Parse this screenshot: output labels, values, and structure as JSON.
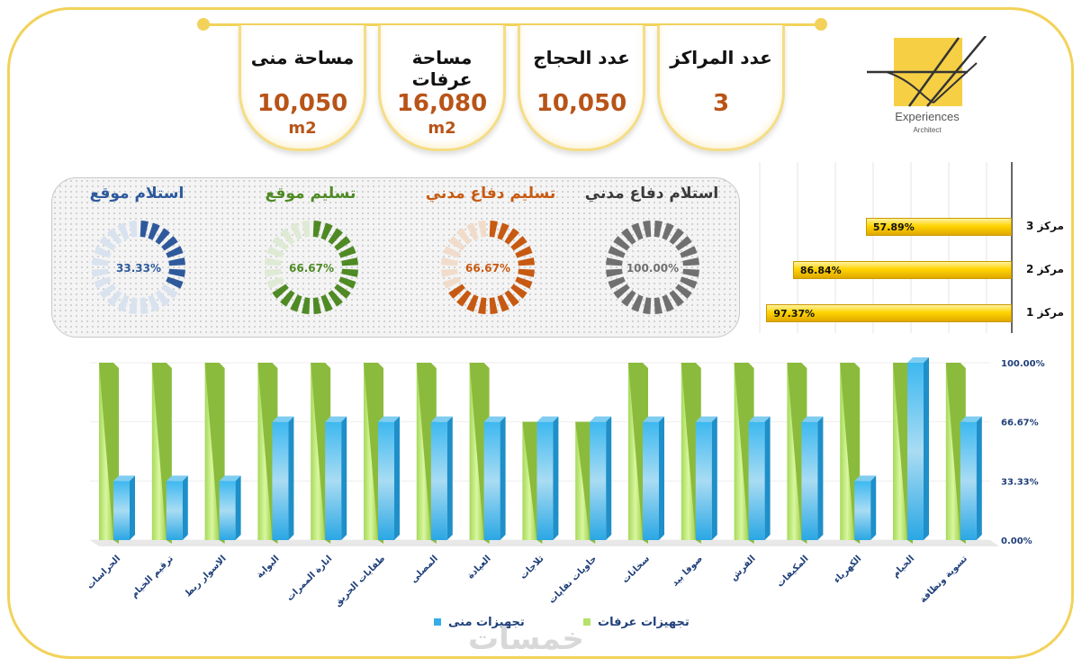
{
  "kpis": [
    {
      "title": "عدد المراكز",
      "value": "3",
      "unit": ""
    },
    {
      "title": "عدد الحجاج",
      "value": "10,050",
      "unit": ""
    },
    {
      "title": "مساحة عرفات",
      "value": "16,080",
      "unit": "m2"
    },
    {
      "title": "مساحة منى",
      "value": "10,050",
      "unit": "m2"
    }
  ],
  "logo": {
    "name": "Experiences",
    "sub": "Architect"
  },
  "gauges": [
    {
      "title": "استلام دفاع مدني",
      "percent": 100,
      "label": "100.00%",
      "color": "#707070",
      "light": "#dcdcdc",
      "title_color": "#3a3a3a"
    },
    {
      "title": "تسليم دفاع مدني",
      "percent": 66.67,
      "label": "66.67%",
      "color": "#c75a12",
      "light": "#f1dccb",
      "title_color": "#c75a12"
    },
    {
      "title": "تسليم موقع",
      "percent": 66.67,
      "label": "66.67%",
      "color": "#4f8a25",
      "light": "#dfead5",
      "title_color": "#4f8a25"
    },
    {
      "title": "استلام موقع",
      "percent": 33.33,
      "label": "33.33%",
      "color": "#2e5a9c",
      "light": "#d9e2ef",
      "title_color": "#2e5a9c"
    }
  ],
  "centers": [
    {
      "label": "مركز 3",
      "value": 57.89,
      "text": "57.89%"
    },
    {
      "label": "مركز 2",
      "value": 86.84,
      "text": "86.84%"
    },
    {
      "label": "مركز 1",
      "value": 97.37,
      "text": "97.37%"
    }
  ],
  "chart_data": {
    "type": "bar",
    "categories": [
      "الحراسات",
      "ترقيم الخيام",
      "الاسوار ربط",
      "البوابة",
      "انارة الممرات",
      "طفايات الحريق",
      "المصلى",
      "العيادة",
      "ثلاجات",
      "حاويات نفايات",
      "سخانات",
      "صوفا بيد",
      "الفرش",
      "المكيفات",
      "الكهرباء",
      "الخيام",
      "تسوية ونظافة"
    ],
    "series": [
      {
        "name": "تجهيزات عرفات",
        "values": [
          100,
          100,
          100,
          100,
          100,
          100,
          100,
          100,
          66.67,
          66.67,
          100,
          100,
          100,
          100,
          100,
          100,
          100
        ]
      },
      {
        "name": "تجهيزات منى",
        "values": [
          33.33,
          33.33,
          33.33,
          66.67,
          66.67,
          66.67,
          66.67,
          66.67,
          66.67,
          66.67,
          66.67,
          66.67,
          66.67,
          66.67,
          33.33,
          100,
          66.67
        ]
      }
    ],
    "yticks": [
      "0.00%",
      "33.33%",
      "66.67%",
      "100.00%"
    ],
    "ylim": [
      0,
      100
    ],
    "legend": "bottom"
  },
  "colors": {
    "accent": "#f2d25a",
    "arafat": "#b4e26a",
    "mina": "#35aee6"
  },
  "watermark": "خمسات"
}
